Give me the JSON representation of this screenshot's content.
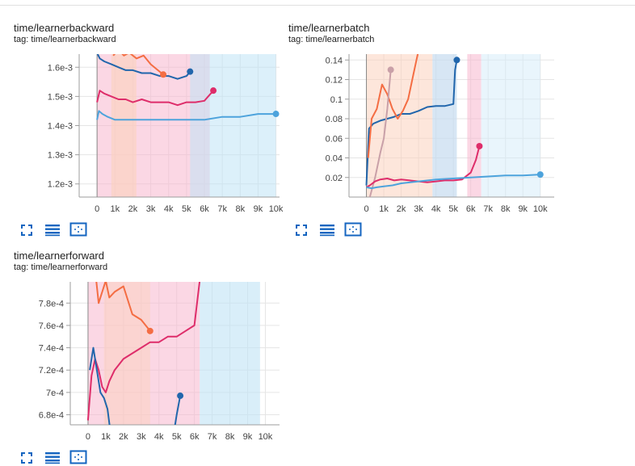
{
  "colors": {
    "dark_blue": "#2166ac",
    "orange": "#f46d43",
    "pink": "#de2d6a",
    "light_blue": "#4da3dc",
    "cyan": "#33bbee",
    "gray_rose": "#c9a0a8",
    "axis": "#9e9e9e",
    "grid": "#e5e5e5",
    "toolbar_icon": "#1565c0"
  },
  "toolbar": {
    "icons": [
      "fullscreen-icon",
      "data-table-icon",
      "fit-domain-icon"
    ]
  },
  "chart_data": [
    {
      "type": "line",
      "title": "time/learnerbackward",
      "tag": "tag: time/learnerbackward",
      "x_ticks": [
        "0",
        "1k",
        "2k",
        "3k",
        "4k",
        "5k",
        "6k",
        "7k",
        "8k",
        "9k",
        "10k"
      ],
      "y_ticks": [
        "1.2e-3",
        "1.3e-3",
        "1.4e-3",
        "1.5e-3",
        "1.6e-3"
      ],
      "xlim": [
        -1000,
        10200
      ],
      "ylim": [
        0.001155,
        0.001645
      ],
      "series": [
        {
          "color": "#2166ac",
          "x": [
            0,
            150,
            400,
            800,
            1200,
            1600,
            2000,
            2500,
            3000,
            3500,
            4000,
            4500,
            5000,
            5200
          ],
          "y": [
            0.00165,
            0.00163,
            0.00162,
            0.00161,
            0.0016,
            0.00159,
            0.00159,
            0.00158,
            0.00158,
            0.00157,
            0.00157,
            0.00156,
            0.00157,
            0.001585
          ]
        },
        {
          "color": "#f46d43",
          "x": [
            900,
            1200,
            1500,
            1800,
            2200,
            2600,
            3000,
            3400,
            3700
          ],
          "y": [
            0.00164,
            0.00166,
            0.00164,
            0.00165,
            0.00163,
            0.00164,
            0.00161,
            0.00159,
            0.001575
          ]
        },
        {
          "color": "#de2d6a",
          "x": [
            0,
            150,
            400,
            800,
            1200,
            1600,
            2000,
            2500,
            3000,
            3500,
            4000,
            4500,
            5000,
            5500,
            6000,
            6500
          ],
          "y": [
            0.00148,
            0.00152,
            0.00151,
            0.0015,
            0.00149,
            0.00149,
            0.00148,
            0.00149,
            0.00148,
            0.00148,
            0.00148,
            0.00147,
            0.00148,
            0.00148,
            0.001485,
            0.00152
          ]
        },
        {
          "color": "#4da3dc",
          "x": [
            0,
            100,
            300,
            600,
            1000,
            1500,
            2000,
            3000,
            4000,
            5000,
            6000,
            7000,
            8000,
            9000,
            10000
          ],
          "y": [
            0.00142,
            0.00145,
            0.00144,
            0.00143,
            0.00142,
            0.00142,
            0.00142,
            0.00142,
            0.00142,
            0.00142,
            0.00142,
            0.00143,
            0.00143,
            0.00144,
            0.00144
          ]
        }
      ]
    },
    {
      "type": "line",
      "title": "time/learnerbatch",
      "tag": "tag: time/learnerbatch",
      "x_ticks": [
        "0",
        "1k",
        "2k",
        "3k",
        "4k",
        "5k",
        "6k",
        "7k",
        "8k",
        "9k",
        "10k"
      ],
      "y_ticks": [
        "0.02",
        "0.04",
        "0.06",
        "0.08",
        "0.1",
        "0.12",
        "0.14"
      ],
      "xlim": [
        -1000,
        10800
      ],
      "ylim": [
        0,
        0.146
      ],
      "series": [
        {
          "color": "#2166ac",
          "x": [
            0,
            150,
            400,
            800,
            1200,
            1600,
            2000,
            2500,
            3000,
            3500,
            4000,
            4500,
            5000,
            5100,
            5200
          ],
          "y": [
            0.012,
            0.07,
            0.075,
            0.078,
            0.08,
            0.082,
            0.085,
            0.085,
            0.088,
            0.092,
            0.093,
            0.093,
            0.095,
            0.13,
            0.14
          ]
        },
        {
          "color": "#f46d43",
          "x": [
            100,
            300,
            600,
            900,
            1200,
            1500,
            1800,
            2100,
            2400,
            2700,
            3000
          ],
          "y": [
            0.04,
            0.08,
            0.09,
            0.115,
            0.105,
            0.09,
            0.08,
            0.088,
            0.1,
            0.125,
            0.15
          ]
        },
        {
          "color": "#c9a0a8",
          "x": [
            200,
            500,
            800,
            1000,
            1200,
            1400
          ],
          "y": [
            0.0,
            0.02,
            0.045,
            0.06,
            0.09,
            0.13
          ]
        },
        {
          "color": "#de2d6a",
          "x": [
            0,
            200,
            500,
            800,
            1200,
            1600,
            2000,
            2500,
            3000,
            3500,
            4000,
            4500,
            5000,
            5500,
            6000,
            6300,
            6500
          ],
          "y": [
            0.01,
            0.012,
            0.016,
            0.018,
            0.019,
            0.017,
            0.018,
            0.017,
            0.016,
            0.015,
            0.016,
            0.017,
            0.017,
            0.018,
            0.025,
            0.038,
            0.052
          ]
        },
        {
          "color": "#4da3dc",
          "x": [
            0,
            300,
            600,
            1000,
            1500,
            2000,
            3000,
            4000,
            5000,
            6000,
            7000,
            8000,
            9000,
            10000
          ],
          "y": [
            0.01,
            0.009,
            0.01,
            0.011,
            0.012,
            0.014,
            0.016,
            0.018,
            0.019,
            0.02,
            0.021,
            0.022,
            0.022,
            0.023
          ]
        }
      ]
    },
    {
      "type": "line",
      "title": "time/learnerforward",
      "tag": "tag: time/learnerforward",
      "x_ticks": [
        "0",
        "1k",
        "2k",
        "3k",
        "4k",
        "5k",
        "6k",
        "7k",
        "8k",
        "9k",
        "10k"
      ],
      "y_ticks": [
        "6.8e-4",
        "7e-4",
        "7.2e-4",
        "7.4e-4",
        "7.6e-4",
        "7.8e-4"
      ],
      "xlim": [
        -1000,
        10800
      ],
      "ylim": [
        0.000671,
        0.000799
      ],
      "series": [
        {
          "color": "#f46d43",
          "x": [
            400,
            600,
            800,
            1000,
            1200,
            1500,
            2000,
            2500,
            3000,
            3500
          ],
          "y": [
            0.00081,
            0.00078,
            0.00079,
            0.0008,
            0.000785,
            0.00079,
            0.000795,
            0.00077,
            0.000765,
            0.000755
          ]
        },
        {
          "color": "#de2d6a",
          "x": [
            0,
            200,
            400,
            600,
            800,
            1000,
            1200,
            1500,
            2000,
            2500,
            3000,
            3500,
            4000,
            4500,
            5000,
            5500,
            6000,
            6300
          ],
          "y": [
            0.000675,
            0.000715,
            0.00073,
            0.00072,
            0.000705,
            0.0007,
            0.00071,
            0.00072,
            0.00073,
            0.000735,
            0.00074,
            0.000745,
            0.000745,
            0.00075,
            0.00075,
            0.000755,
            0.00076,
            0.0008
          ]
        },
        {
          "color": "#2166ac",
          "x": [
            100,
            300,
            500,
            700,
            900,
            1100,
            1300,
            4800,
            5000,
            5200
          ],
          "y": [
            0.00072,
            0.00074,
            0.00072,
            0.0007,
            0.000695,
            0.000685,
            0.00066,
            0.00066,
            0.00068,
            0.000697
          ]
        }
      ]
    }
  ]
}
